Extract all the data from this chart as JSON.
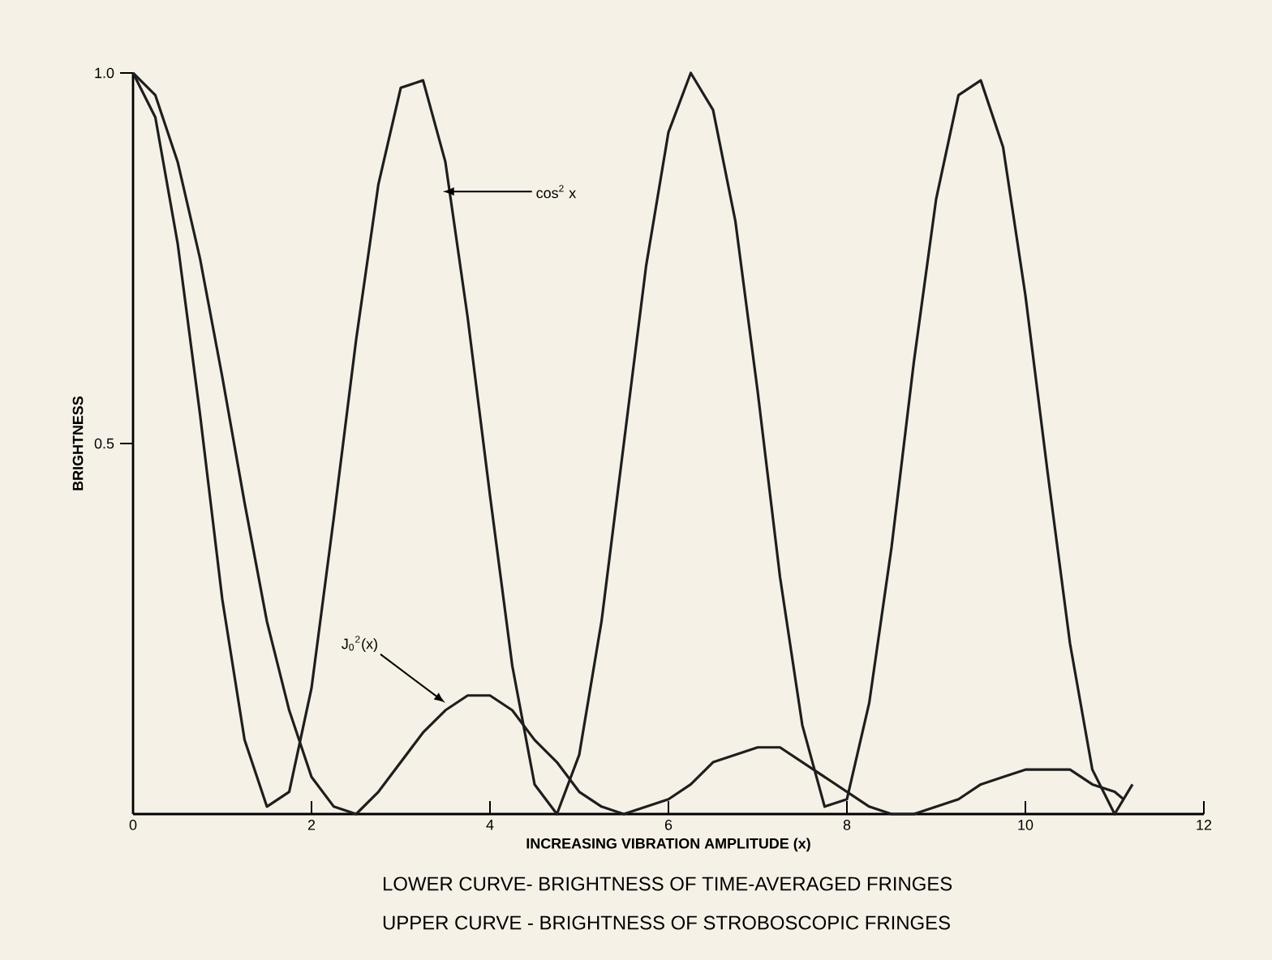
{
  "chart_data": {
    "type": "line",
    "xlabel": "INCREASING VIBRATION AMPLITUDE (x)",
    "ylabel": "BRIGHTNESS",
    "xlim": [
      0,
      12
    ],
    "ylim": [
      0,
      1
    ],
    "xticks": [
      0,
      2,
      4,
      6,
      8,
      10,
      12
    ],
    "yticks": [
      {
        "value": 0.5,
        "label": "0.5"
      },
      {
        "value": 1.0,
        "label": "1.0"
      }
    ],
    "series": [
      {
        "color": "#1e1e1e",
        "x": [
          0,
          0.25,
          0.5,
          0.75,
          1,
          1.25,
          1.5,
          1.75,
          2,
          2.25,
          2.5,
          2.75,
          3,
          3.25,
          3.5,
          3.75,
          4,
          4.25,
          4.5,
          4.75,
          5,
          5.25,
          5.5,
          5.75,
          6,
          6.25,
          6.5,
          6.75,
          7,
          7.25,
          7.5,
          7.75,
          8,
          8.25,
          8.5,
          8.75,
          9,
          9.25,
          9.5,
          9.75,
          10,
          10.25,
          10.5,
          10.75,
          11,
          11.2
        ],
        "values": [
          1,
          0.94,
          0.77,
          0.54,
          0.29,
          0.1,
          0.01,
          0.03,
          0.17,
          0.4,
          0.64,
          0.85,
          0.98,
          0.99,
          0.88,
          0.67,
          0.43,
          0.2,
          0.04,
          0,
          0.08,
          0.26,
          0.5,
          0.74,
          0.92,
          1,
          0.95,
          0.8,
          0.57,
          0.32,
          0.12,
          0.01,
          0.02,
          0.15,
          0.36,
          0.61,
          0.83,
          0.97,
          0.99,
          0.9,
          0.7,
          0.46,
          0.23,
          0.06,
          0,
          0.04
        ]
      },
      {
        "color": "#1e1e1e",
        "x": [
          0,
          0.25,
          0.5,
          0.75,
          1,
          1.25,
          1.5,
          1.75,
          2,
          2.25,
          2.5,
          2.75,
          3,
          3.25,
          3.5,
          3.75,
          4,
          4.25,
          4.5,
          4.75,
          5,
          5.25,
          5.5,
          5.75,
          6,
          6.25,
          6.5,
          6.75,
          7,
          7.25,
          7.5,
          7.75,
          8,
          8.25,
          8.5,
          8.75,
          9,
          9.25,
          9.5,
          9.75,
          10,
          10.25,
          10.5,
          10.75,
          11,
          11.1
        ],
        "values": [
          1,
          0.97,
          0.88,
          0.75,
          0.59,
          0.42,
          0.26,
          0.14,
          0.05,
          0.01,
          0,
          0.03,
          0.07,
          0.11,
          0.14,
          0.16,
          0.16,
          0.14,
          0.1,
          0.07,
          0.03,
          0.01,
          0,
          0.01,
          0.02,
          0.04,
          0.07,
          0.08,
          0.09,
          0.09,
          0.07,
          0.05,
          0.03,
          0.01,
          0,
          0,
          0.01,
          0.02,
          0.04,
          0.05,
          0.06,
          0.06,
          0.06,
          0.04,
          0.03,
          0.02
        ]
      }
    ],
    "annotations": [
      {
        "text": "cos$^{2}$ x",
        "x": 3.47,
        "y": 0.84
      },
      {
        "text": "J$_{0}$$^{2}$(x)",
        "x": 3.5,
        "y": 0.15
      },
      "LOWER CURVE- BRIGHTNESS OF TIME-AVERAGED FRINGES",
      "UPPER CURVE - BRIGHTNESS OF STROBOSCOPIC FRINGES"
    ]
  }
}
